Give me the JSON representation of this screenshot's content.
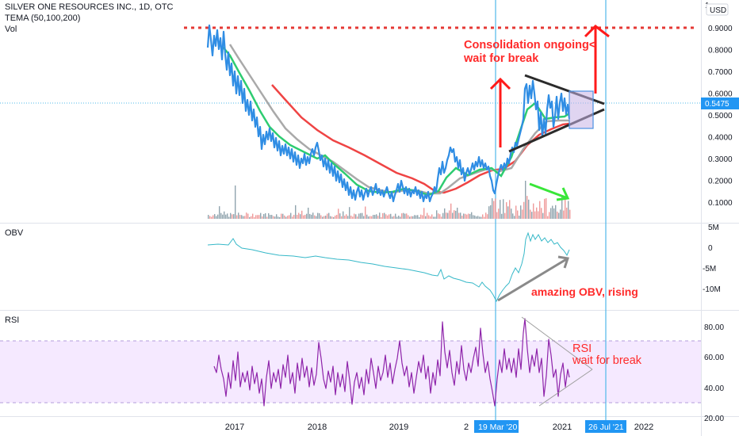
{
  "header": {
    "title": "SILVER ONE RESOURCES INC., 1D, OTC",
    "indicator": "TEMA (50,100,200)",
    "volume": "Vol"
  },
  "currency_badge": "USD",
  "price_axis_top": "1",
  "panes": {
    "obv_label": "OBV",
    "rsi_label": "RSI"
  },
  "annotations": {
    "consolidation_line1": "Consolidation ongoing<",
    "consolidation_line2": "wait for break",
    "obv_note": "amazing OBV, rising",
    "rsi_line1": "RSI",
    "rsi_line2": "wait for break"
  },
  "chart_data": [
    {
      "type": "line",
      "pane": "price",
      "series": [
        {
          "role": "price",
          "color": "#2196f3"
        },
        {
          "role": "tema-50",
          "color": "#22c55e"
        },
        {
          "role": "tema-100",
          "color": "#a0a0a0"
        },
        {
          "role": "tema-200",
          "color": "#ef4444"
        }
      ],
      "x_tick_labels": [
        "2017",
        "2018",
        "2019",
        "2",
        "2021",
        "2022"
      ],
      "date_markers": [
        "19 Mar '20",
        "26 Jul '21"
      ],
      "y_tick_labels": [
        "0.9000",
        "0.8000",
        "0.7000",
        "0.6000",
        "0.5000",
        "0.4000",
        "0.3000",
        "0.2000",
        "0.1000"
      ],
      "last_price": "0.5475",
      "resistance_level": 0.9,
      "x": [
        2016.6,
        2016.7,
        2016.8,
        2016.9,
        2017.0,
        2017.2,
        2017.4,
        2017.6,
        2017.8,
        2018.0,
        2018.2,
        2018.4,
        2018.6,
        2018.8,
        2019.0,
        2019.2,
        2019.4,
        2019.6,
        2019.8,
        2020.0,
        2020.2,
        2020.35,
        2020.5,
        2020.6,
        2020.7,
        2020.8,
        2020.9,
        2021.0,
        2021.1
      ],
      "price": [
        0.83,
        0.86,
        0.78,
        0.67,
        0.55,
        0.42,
        0.36,
        0.35,
        0.31,
        0.29,
        0.28,
        0.23,
        0.18,
        0.17,
        0.19,
        0.16,
        0.14,
        0.26,
        0.23,
        0.26,
        0.2,
        0.38,
        0.42,
        0.62,
        0.52,
        0.55,
        0.43,
        0.49,
        0.5475
      ],
      "volume_color_up": "#ef9a9a",
      "volume_color_down": "#90a4ae"
    },
    {
      "type": "line",
      "pane": "obv",
      "y_tick_labels": [
        "5M",
        "0",
        "-5M",
        "-10M"
      ],
      "x": [
        2016.6,
        2016.8,
        2017.0,
        2017.4,
        2017.8,
        2018.2,
        2018.6,
        2019.0,
        2019.4,
        2019.8,
        2020.1,
        2020.2,
        2020.35,
        2020.5,
        2020.6,
        2020.8,
        2021.0,
        2021.1
      ],
      "values": [
        0.2,
        1.2,
        -0.8,
        -2.0,
        -3.2,
        -3.9,
        -4.8,
        -6.0,
        -7.0,
        -8.3,
        -9.8,
        -12.3,
        -10.5,
        -6.2,
        4.2,
        2.8,
        0.6,
        -1.5
      ]
    },
    {
      "type": "line",
      "pane": "rsi",
      "y_tick_labels": [
        "80.00",
        "60.00",
        "40.00",
        "20.00"
      ],
      "overbought": 70,
      "oversold": 30,
      "ylim": [
        20,
        85
      ]
    }
  ]
}
